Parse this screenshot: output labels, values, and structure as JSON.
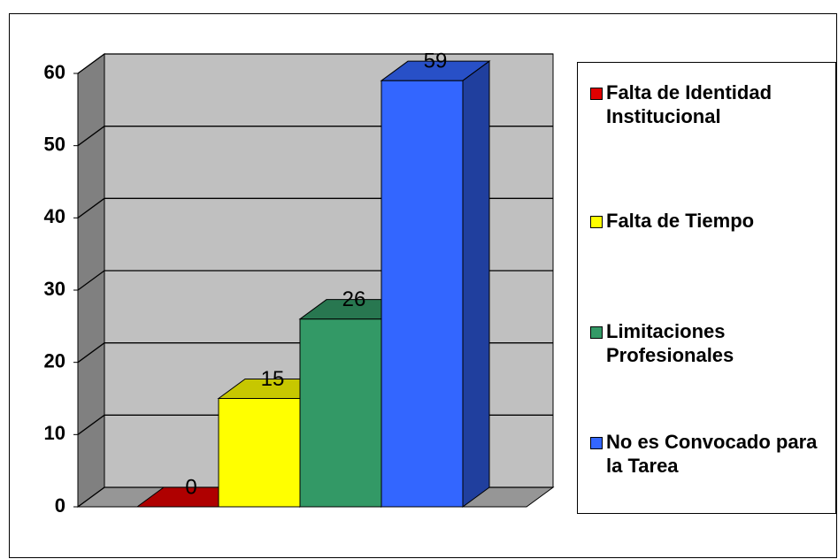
{
  "chart_data": {
    "type": "bar3d",
    "series": [
      {
        "name": "Falta de Identidad Institucional",
        "color": "#e00000",
        "values": [
          0
        ]
      },
      {
        "name": "Falta de Tiempo",
        "color": "#ffff00",
        "values": [
          15
        ]
      },
      {
        "name": "Limitaciones Profesionales",
        "color": "#339966",
        "values": [
          26
        ]
      },
      {
        "name": "No es Convocado para la Tarea",
        "color": "#3366ff",
        "values": [
          59
        ]
      }
    ],
    "ylim": [
      0,
      60
    ],
    "yticks": [
      0,
      10,
      20,
      30,
      40,
      50,
      60
    ],
    "grid": true,
    "legend": "right"
  }
}
